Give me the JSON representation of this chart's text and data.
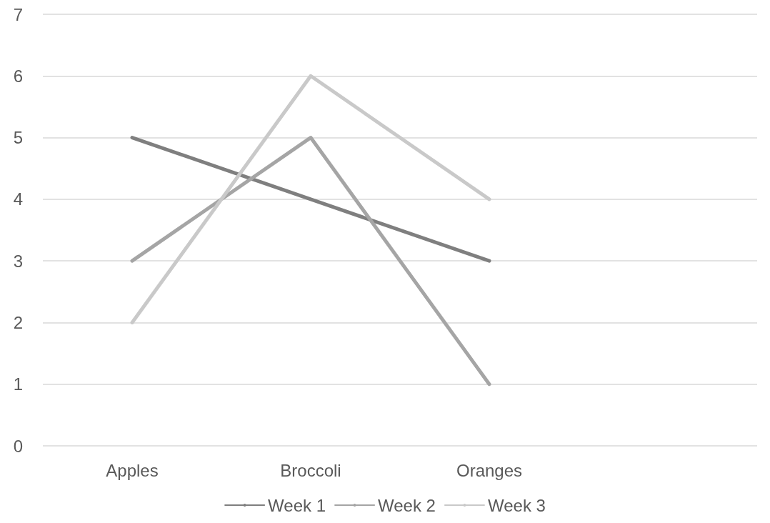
{
  "chart_data": {
    "type": "line",
    "categories": [
      "Apples",
      "Broccoli",
      "Oranges",
      null
    ],
    "series": [
      {
        "name": "Week 1",
        "color": "#7f7f7f",
        "values": [
          5,
          4,
          3,
          null
        ]
      },
      {
        "name": "Week 2",
        "color": "#a5a5a5",
        "values": [
          3,
          5,
          1,
          null
        ]
      },
      {
        "name": "Week 3",
        "color": "#c9c9c9",
        "values": [
          2,
          6,
          4,
          null
        ]
      }
    ],
    "ylim": [
      0,
      7
    ],
    "yticks": [
      0,
      1,
      2,
      3,
      4,
      5,
      6,
      7
    ],
    "grid": "y",
    "legend": "bottom",
    "marker": "none",
    "line_style": "solid"
  }
}
